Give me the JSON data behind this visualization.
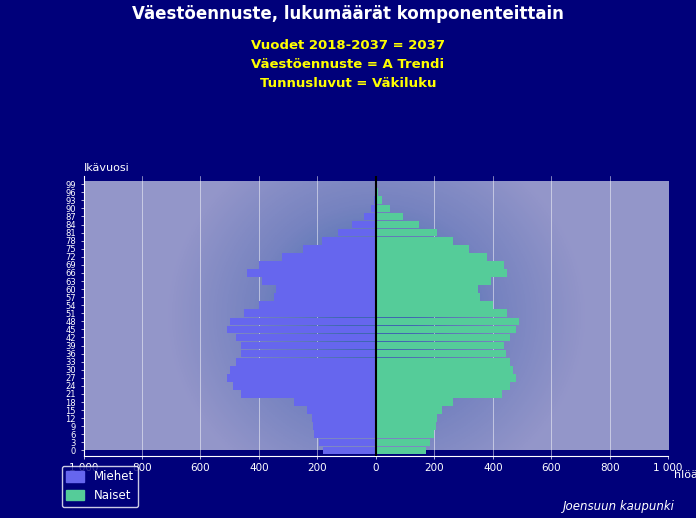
{
  "title": "Väestöennuste, lukumäärät komponenteittain",
  "subtitle1": "Vuodet 2018-2037 = 2037",
  "subtitle2": "Väestöennuste = A Trendi",
  "subtitle3": "Tunnusluvut = Väkiluku",
  "ylabel": "Ikävuosi",
  "xlabel": "hlöä",
  "watermark": "Joensuun kaupunki",
  "legend_men": "Miehet",
  "legend_women": "Naiset",
  "bg_color": "#00007a",
  "bar_color_men": "#6666ee",
  "bar_color_women": "#55cc99",
  "ages": [
    0,
    3,
    6,
    9,
    12,
    15,
    18,
    21,
    24,
    27,
    30,
    33,
    36,
    39,
    42,
    45,
    48,
    51,
    54,
    57,
    60,
    63,
    66,
    69,
    72,
    75,
    78,
    81,
    84,
    87,
    90,
    93,
    96,
    99
  ],
  "men": [
    180,
    195,
    210,
    215,
    220,
    235,
    280,
    460,
    490,
    510,
    500,
    480,
    460,
    460,
    480,
    510,
    500,
    450,
    400,
    350,
    340,
    390,
    440,
    400,
    320,
    250,
    185,
    130,
    80,
    42,
    18,
    7,
    2,
    1
  ],
  "women": [
    170,
    185,
    200,
    205,
    210,
    225,
    265,
    430,
    460,
    480,
    470,
    460,
    445,
    440,
    460,
    480,
    490,
    450,
    400,
    355,
    350,
    395,
    450,
    440,
    380,
    320,
    265,
    210,
    148,
    92,
    50,
    22,
    8,
    2
  ]
}
